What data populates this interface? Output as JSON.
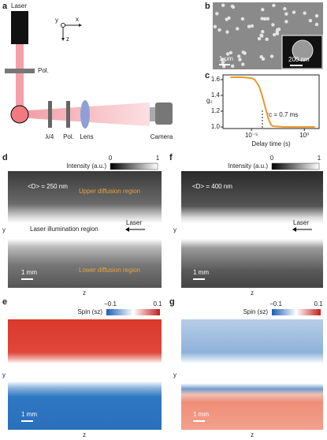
{
  "panels": {
    "a": {
      "label": "a",
      "laser": "Laser",
      "pol_top": "Pol.",
      "axis_y": "y",
      "axis_x": "x",
      "axis_z": "z",
      "qwp": "λ/4",
      "pol": "Pol.",
      "lens": "Lens",
      "camera": "Camera"
    },
    "b": {
      "label": "b",
      "scale_main": "1 μm",
      "scale_inset": "200 nm"
    },
    "c": {
      "label": "c",
      "chart": {
        "type": "line",
        "ylabel": "g₂",
        "xlabel": "Delay time (s)",
        "annotation": "τc = 0.7 ms",
        "color": "#e89a2c",
        "log_x": true,
        "x": [
          1e-07,
          1e-06,
          1e-05,
          2e-05,
          5e-05,
          0.0001,
          0.0002,
          0.0004,
          0.0007,
          0.001,
          0.01,
          0.1,
          1,
          10
        ],
        "values": [
          1.63,
          1.63,
          1.62,
          1.6,
          1.52,
          1.4,
          1.25,
          1.1,
          1.03,
          1.01,
          1.0,
          1.0,
          1.0,
          1.0
        ],
        "xlim": [
          2e-08,
          25
        ],
        "ylim": [
          0.98,
          1.66
        ],
        "xticks": [
          {
            "value": 1e-05,
            "label": "10⁻⁵"
          },
          {
            "value": 1,
            "label": "10⁰"
          }
        ],
        "yticks": [
          {
            "value": 1,
            "label": "1.0"
          },
          {
            "value": 1.2,
            "label": "1.2"
          },
          {
            "value": 1.4,
            "label": "1.4"
          },
          {
            "value": 1.6,
            "label": "1.6"
          }
        ]
      }
    },
    "d": {
      "label": "d",
      "colorbar_title": "Intensity (a.u.)",
      "cb_min": 0,
      "cb_max": 1,
      "size": "<D> = 250 nm",
      "upper": "Upper diffusion region",
      "middle": "Laser illumination region",
      "laser": "Laser",
      "lower": "Lower diffusion region",
      "scale": "1 mm",
      "ylabel": "y",
      "xlabel": "z"
    },
    "f": {
      "label": "f",
      "colorbar_title": "Intensity (a.u.)",
      "cb_min": 0,
      "cb_max": 1,
      "size": "<D> = 400 nm",
      "laser": "Laser",
      "scale": "1 mm",
      "ylabel": "y",
      "xlabel": "z"
    },
    "e": {
      "label": "e",
      "colorbar_title": "Spin (sz)",
      "cb_min": {
        "value": -0.1,
        "label": "−0.1"
      },
      "cb_max": 0.1,
      "scale": "1 mm",
      "ylabel": "y",
      "xlabel": "z"
    },
    "g": {
      "label": "g",
      "colorbar_title": "Spin (sz)",
      "cb_min": {
        "value": -0.1,
        "label": "−0.1"
      },
      "cb_max": 0.1,
      "scale": "1 mm",
      "ylabel": "y",
      "xlabel": "z"
    }
  }
}
